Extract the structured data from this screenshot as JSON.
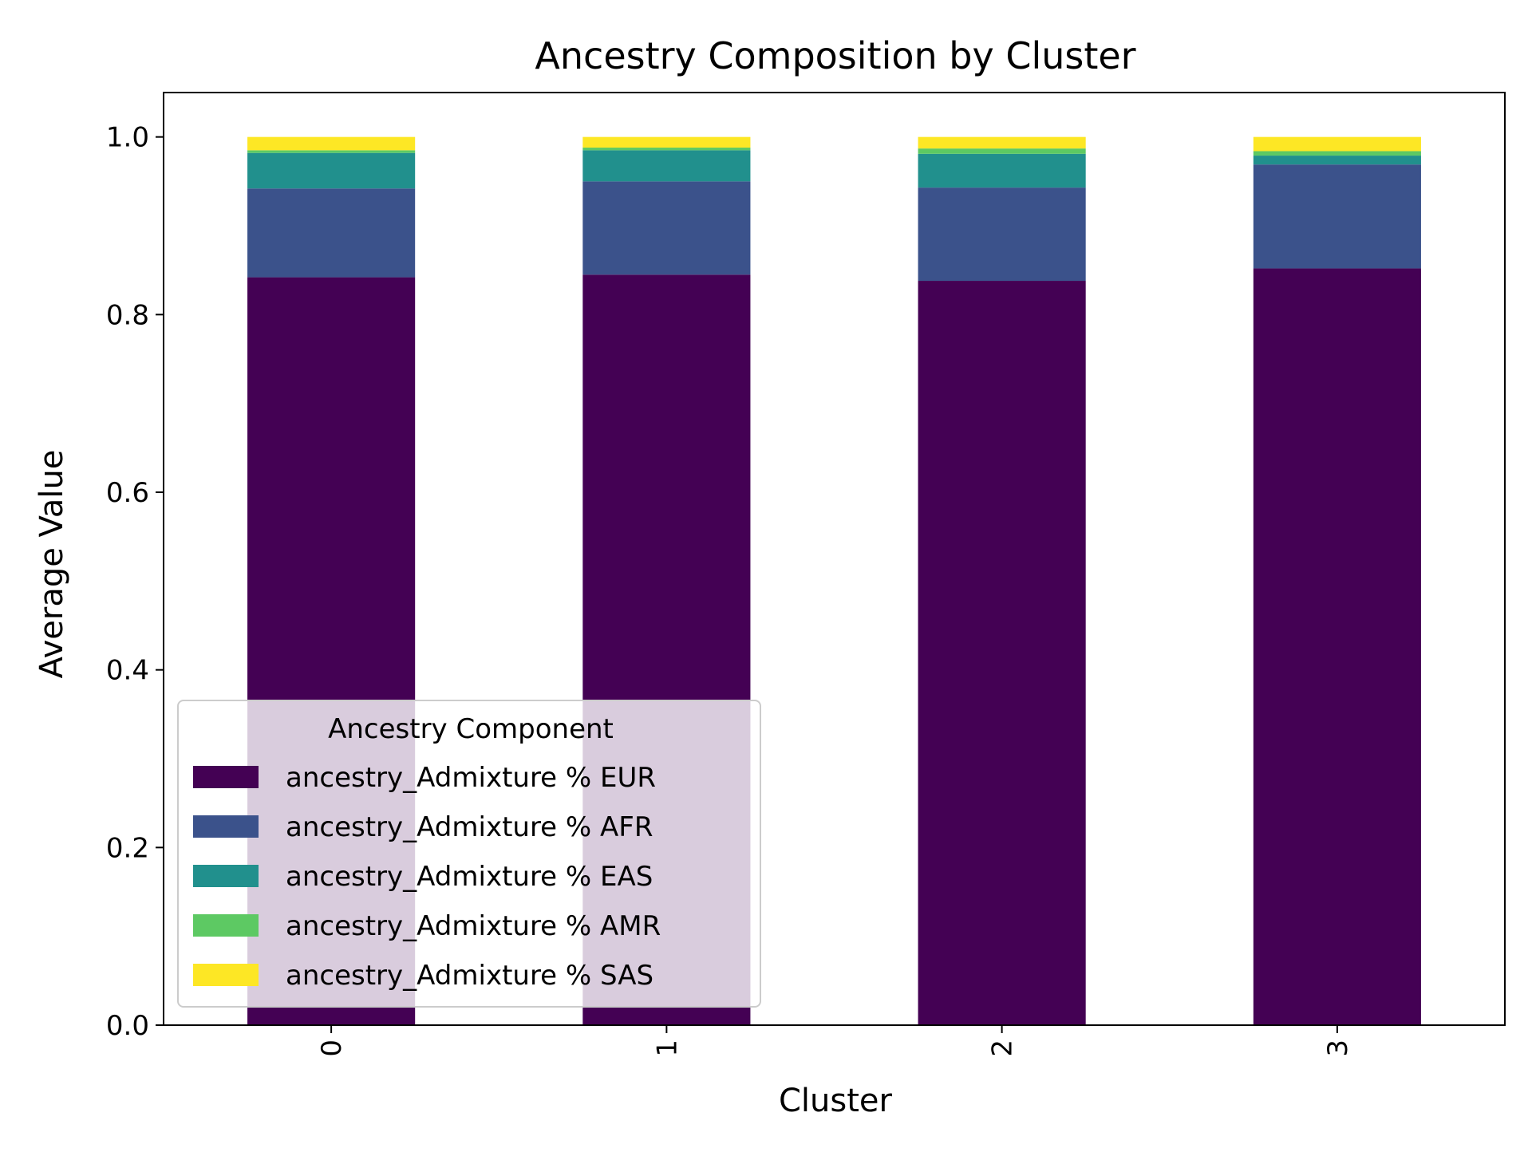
{
  "chart_data": {
    "type": "bar",
    "stacked": true,
    "title": "Ancestry Composition by Cluster",
    "xlabel": "Cluster",
    "ylabel": "Average Value",
    "categories": [
      "0",
      "1",
      "2",
      "3"
    ],
    "ylim": [
      0,
      1.05
    ],
    "yticks": [
      "0.0",
      "0.2",
      "0.4",
      "0.6",
      "0.8",
      "1.0"
    ],
    "grid": false,
    "series": [
      {
        "name": "ancestry_Admixture % EUR",
        "color": "#440154",
        "values": [
          0.842,
          0.845,
          0.838,
          0.852
        ]
      },
      {
        "name": "ancestry_Admixture % AFR",
        "color": "#3b528b",
        "values": [
          0.1,
          0.105,
          0.105,
          0.117
        ]
      },
      {
        "name": "ancestry_Admixture % EAS",
        "color": "#21908d",
        "values": [
          0.04,
          0.035,
          0.038,
          0.01
        ]
      },
      {
        "name": "ancestry_Admixture % AMR",
        "color": "#5dc963",
        "values": [
          0.003,
          0.003,
          0.006,
          0.005
        ]
      },
      {
        "name": "ancestry_Admixture % SAS",
        "color": "#fde725",
        "values": [
          0.015,
          0.012,
          0.013,
          0.016
        ]
      }
    ],
    "legend": {
      "title": "Ancestry Component",
      "placement": "lower-left"
    }
  }
}
